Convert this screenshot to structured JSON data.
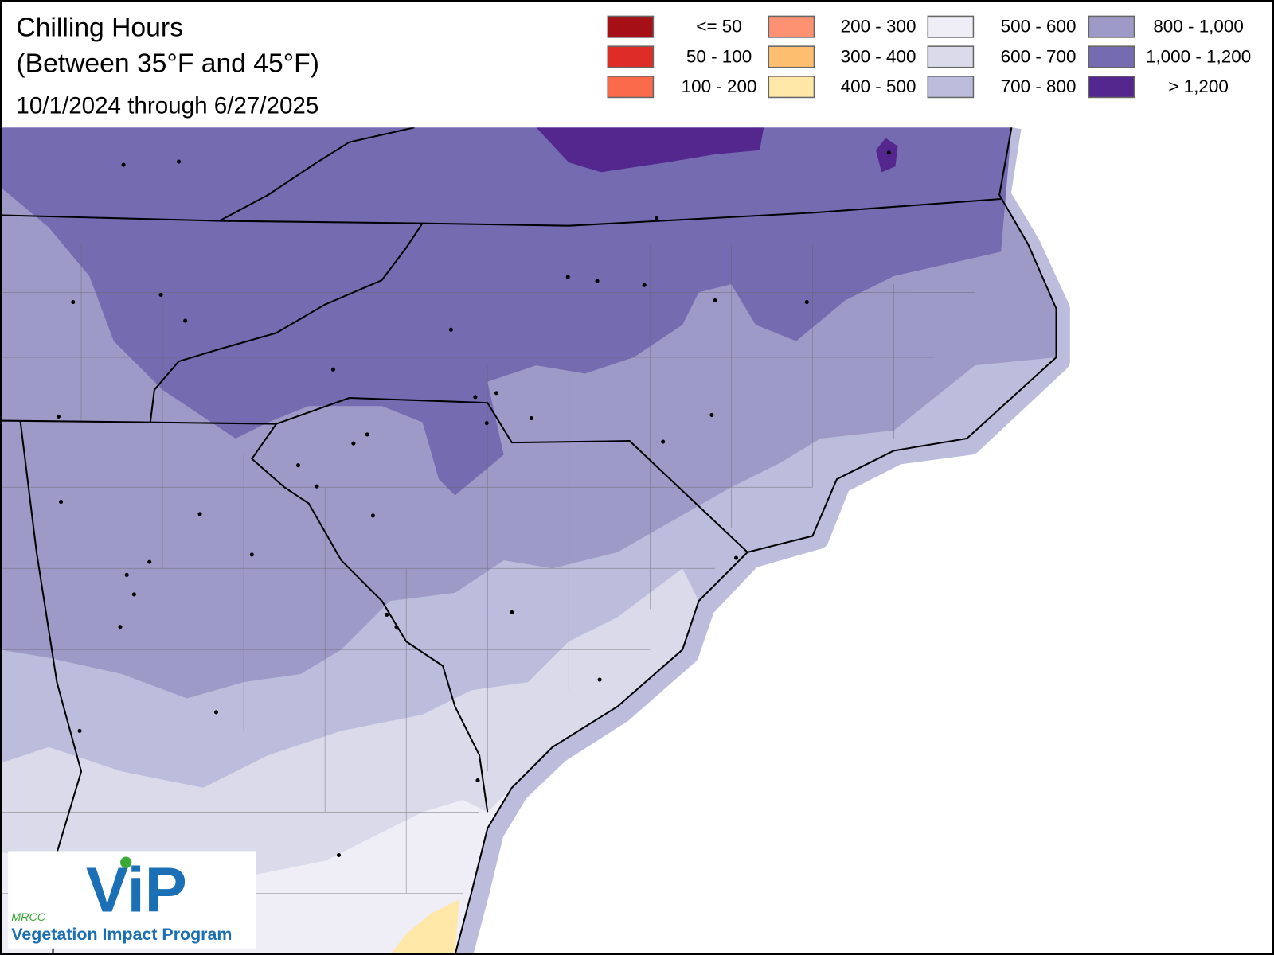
{
  "header": {
    "title": "Chilling Hours",
    "subtitle": "(Between 35°F and 45°F)",
    "date_range": "10/1/2024 through 6/27/2025"
  },
  "legend": [
    {
      "label": "<= 50",
      "color": "#a50f15"
    },
    {
      "label": "50 - 100",
      "color": "#de2d26"
    },
    {
      "label": "100 - 200",
      "color": "#fb6a4a"
    },
    {
      "label": "200 - 300",
      "color": "#fc9272"
    },
    {
      "label": "300 - 400",
      "color": "#fdbe6f"
    },
    {
      "label": "400 - 500",
      "color": "#ffe7a8"
    },
    {
      "label": "500 - 600",
      "color": "#efedf5"
    },
    {
      "label": "600 - 700",
      "color": "#dadaeb"
    },
    {
      "label": "700 - 800",
      "color": "#bcbddc"
    },
    {
      "label": "800 - 1,000",
      "color": "#9e9ac8"
    },
    {
      "label": "1,000 - 1,200",
      "color": "#756bb1"
    },
    {
      "label": "> 1,200",
      "color": "#54278f"
    }
  ],
  "logo": {
    "org": "MRCC",
    "mark": "ViP",
    "name": "Vegetation Impact Program"
  }
}
